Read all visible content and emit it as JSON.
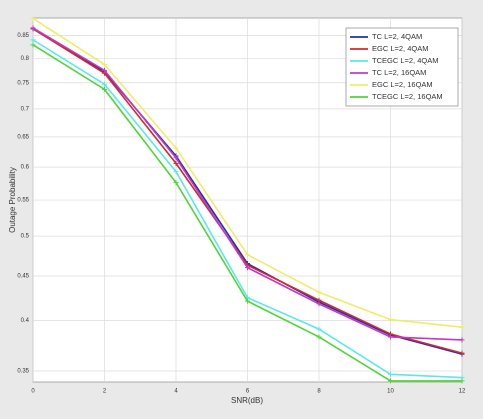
{
  "chart_data": {
    "type": "line",
    "x": [
      0,
      2,
      4,
      6,
      8,
      10,
      12
    ],
    "series": [
      {
        "name": "TC L=2, 4QAM",
        "color": "#1f2fb0",
        "values": [
          0.865,
          0.772,
          0.618,
          0.465,
          0.42,
          0.385,
          0.366
        ]
      },
      {
        "name": "EGC L=2, 4QAM",
        "color": "#d42a2a",
        "values": [
          0.865,
          0.769,
          0.606,
          0.463,
          0.422,
          0.386,
          0.367
        ]
      },
      {
        "name": "TCEGC L=2, 4QAM",
        "color": "#5ce8e8",
        "values": [
          0.84,
          0.747,
          0.593,
          0.425,
          0.391,
          0.347,
          0.344
        ]
      },
      {
        "name": "TC L=2, 16QAM",
        "color": "#c03ac8",
        "values": [
          0.867,
          0.775,
          0.615,
          0.46,
          0.418,
          0.383,
          0.38
        ]
      },
      {
        "name": "EGC L=2, 16QAM",
        "color": "#eded6a",
        "values": [
          0.889,
          0.787,
          0.631,
          0.476,
          0.431,
          0.401,
          0.393
        ]
      },
      {
        "name": "TCEGC L=2, 16QAM",
        "color": "#52d43a",
        "values": [
          0.829,
          0.737,
          0.576,
          0.421,
          0.383,
          0.341,
          0.341
        ]
      }
    ],
    "xlabel": "SNR(dB)",
    "ylabel": "Outage Probability",
    "xlim": [
      0,
      12
    ],
    "xticks": [
      0,
      2,
      4,
      6,
      8,
      10,
      12
    ],
    "ylim": [
      0.34,
      0.89
    ],
    "yticks": [
      0.35,
      0.4,
      0.45,
      0.5,
      0.55,
      0.6,
      0.65,
      0.7,
      0.75,
      0.8,
      0.85
    ],
    "yscale": "log",
    "grid": true,
    "legend": "upper right"
  }
}
